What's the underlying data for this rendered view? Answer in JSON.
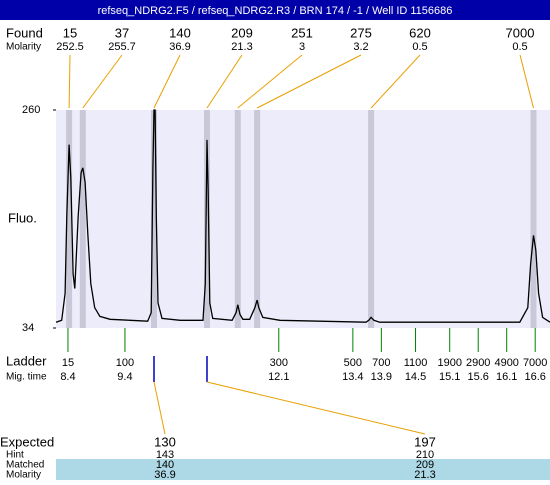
{
  "title": "refseq_NDRG2.F5 / refseq_NDRG2.R3 / BRN 174 / -1 / Well ID 1156686",
  "found": {
    "label": "Found",
    "molarity_label": "Molarity",
    "peaks": [
      {
        "size": 15,
        "molarity": 252.5,
        "time": 8.42
      },
      {
        "size": 37,
        "molarity": 255.7,
        "time": 8.66
      },
      {
        "size": 140,
        "molarity": 36.9,
        "time": 9.91
      },
      {
        "size": 209,
        "molarity": 21.3,
        "time": 10.84
      },
      {
        "size": 251,
        "molarity": 3,
        "time": 11.38
      },
      {
        "size": 275,
        "molarity": 3.2,
        "time": 11.72
      },
      {
        "size": 620,
        "molarity": 0.5,
        "time": 13.72
      },
      {
        "size": 7000,
        "molarity": 0.5,
        "time": 16.57
      }
    ]
  },
  "plot": {
    "y_label": "Fluo.",
    "ylim": [
      34,
      260
    ],
    "yticks": [
      260,
      34
    ],
    "xlim": [
      8.19,
      16.86
    ],
    "trace": {
      "x": [
        8.19,
        8.29,
        8.35,
        8.38,
        8.42,
        8.45,
        8.49,
        8.52,
        8.58,
        8.63,
        8.66,
        8.7,
        8.75,
        8.8,
        8.87,
        8.96,
        9.14,
        9.49,
        9.8,
        9.86,
        9.89,
        9.91,
        9.93,
        9.95,
        9.98,
        10.05,
        10.37,
        10.77,
        10.81,
        10.84,
        10.86,
        10.89,
        10.94,
        11.28,
        11.35,
        11.38,
        11.42,
        11.47,
        11.59,
        11.68,
        11.72,
        11.75,
        11.82,
        12.12,
        12.82,
        13.63,
        13.68,
        13.72,
        13.77,
        13.87,
        15.1,
        16.33,
        16.47,
        16.52,
        16.57,
        16.61,
        16.66,
        16.73,
        16.86
      ],
      "y": [
        40,
        42,
        70,
        150,
        224,
        190,
        90,
        75,
        150,
        195,
        200,
        185,
        130,
        80,
        55,
        46,
        43,
        42,
        41,
        50,
        200,
        260,
        260,
        150,
        60,
        44,
        42,
        42,
        80,
        229,
        180,
        60,
        44,
        42,
        50,
        58,
        48,
        43,
        43,
        55,
        63,
        55,
        45,
        42,
        41,
        40,
        42,
        45,
        42,
        40,
        40,
        40,
        55,
        100,
        130,
        115,
        70,
        45,
        40
      ]
    }
  },
  "ladder": {
    "label": "Ladder",
    "time_label": "Mig. time",
    "sizes": [
      15,
      100,
      300,
      500,
      700,
      1100,
      1900,
      2900,
      4900,
      7000
    ],
    "times": [
      8.4,
      9.4,
      12.1,
      13.4,
      13.9,
      14.5,
      15.1,
      15.6,
      16.1,
      16.6
    ]
  },
  "expected": {
    "label": "Expected",
    "hint_label": "Hint",
    "matched_label": "Matched",
    "molarity_label": "Molarity",
    "values": [
      130,
      197
    ],
    "hint": [
      143,
      210
    ],
    "matched": [
      140,
      209
    ],
    "molarity": [
      36.9,
      21.3
    ]
  }
}
